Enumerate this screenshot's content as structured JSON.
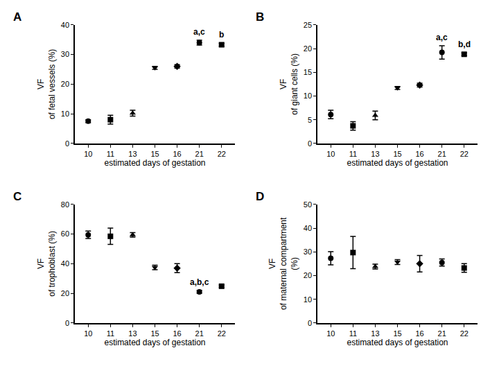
{
  "chart_data": [
    {
      "type": "scatter",
      "title": "A",
      "x_label": "estimated days of gestation",
      "y_label": "VF\nof fetal vessels (%)",
      "categories": [
        "10",
        "11",
        "13",
        "15",
        "16",
        "21",
        "22"
      ],
      "values": [
        7.5,
        8,
        10.2,
        25.5,
        26,
        34,
        33.3
      ],
      "errors": [
        0.5,
        1.5,
        1,
        0.5,
        0.6,
        0.8,
        0.5
      ],
      "ylim": [
        0,
        40
      ],
      "yticks": [
        0,
        10,
        20,
        30,
        40
      ],
      "annotations": [
        {
          "category": "21",
          "text": "a,c"
        },
        {
          "category": "22",
          "text": "b"
        }
      ],
      "color": "#000000",
      "marker": "cycle",
      "grid": false
    },
    {
      "type": "scatter",
      "title": "B",
      "x_label": "estimated days of gestation",
      "y_label": "VF\nof giant cells (%)",
      "categories": [
        "10",
        "11",
        "13",
        "15",
        "16",
        "21",
        "22"
      ],
      "values": [
        6.1,
        3.7,
        5.9,
        11.7,
        12.3,
        19.2,
        18.8
      ],
      "errors": [
        0.9,
        0.9,
        0.9,
        0.3,
        0.4,
        1.4,
        0.3
      ],
      "ylim": [
        0,
        25
      ],
      "yticks": [
        0,
        5,
        10,
        15,
        20,
        25
      ],
      "annotations": [
        {
          "category": "21",
          "text": "a,c"
        },
        {
          "category": "22",
          "text": "b,d"
        }
      ],
      "color": "#000000",
      "marker": "cycle",
      "grid": false
    },
    {
      "type": "scatter",
      "title": "C",
      "x_label": "estimated days of gestation",
      "y_label": "VF\nof trophoblast (%)",
      "categories": [
        "10",
        "11",
        "13",
        "15",
        "16",
        "21",
        "22"
      ],
      "values": [
        59.5,
        58.5,
        59.5,
        37.5,
        37,
        21,
        24.8
      ],
      "errors": [
        2.5,
        5.5,
        1.5,
        1.5,
        3,
        1,
        0.8
      ],
      "ylim": [
        0,
        80
      ],
      "yticks": [
        0,
        20,
        40,
        60,
        80
      ],
      "annotations": [
        {
          "category": "21",
          "text": "a,b,c"
        }
      ],
      "color": "#000000",
      "marker": "cycle",
      "grid": false
    },
    {
      "type": "scatter",
      "title": "D",
      "x_label": "estimated days of gestation",
      "y_label": "VF\nof maternal compartment\n(%)",
      "categories": [
        "10",
        "11",
        "13",
        "15",
        "16",
        "21",
        "22"
      ],
      "values": [
        27.3,
        29.7,
        23.8,
        25.7,
        25,
        25.5,
        23.2
      ],
      "errors": [
        2.8,
        6.8,
        1,
        1,
        3.5,
        1.5,
        1.8
      ],
      "ylim": [
        0,
        50
      ],
      "yticks": [
        0,
        10,
        20,
        30,
        40,
        50
      ],
      "annotations": [],
      "color": "#000000",
      "marker": "cycle",
      "grid": false
    }
  ]
}
